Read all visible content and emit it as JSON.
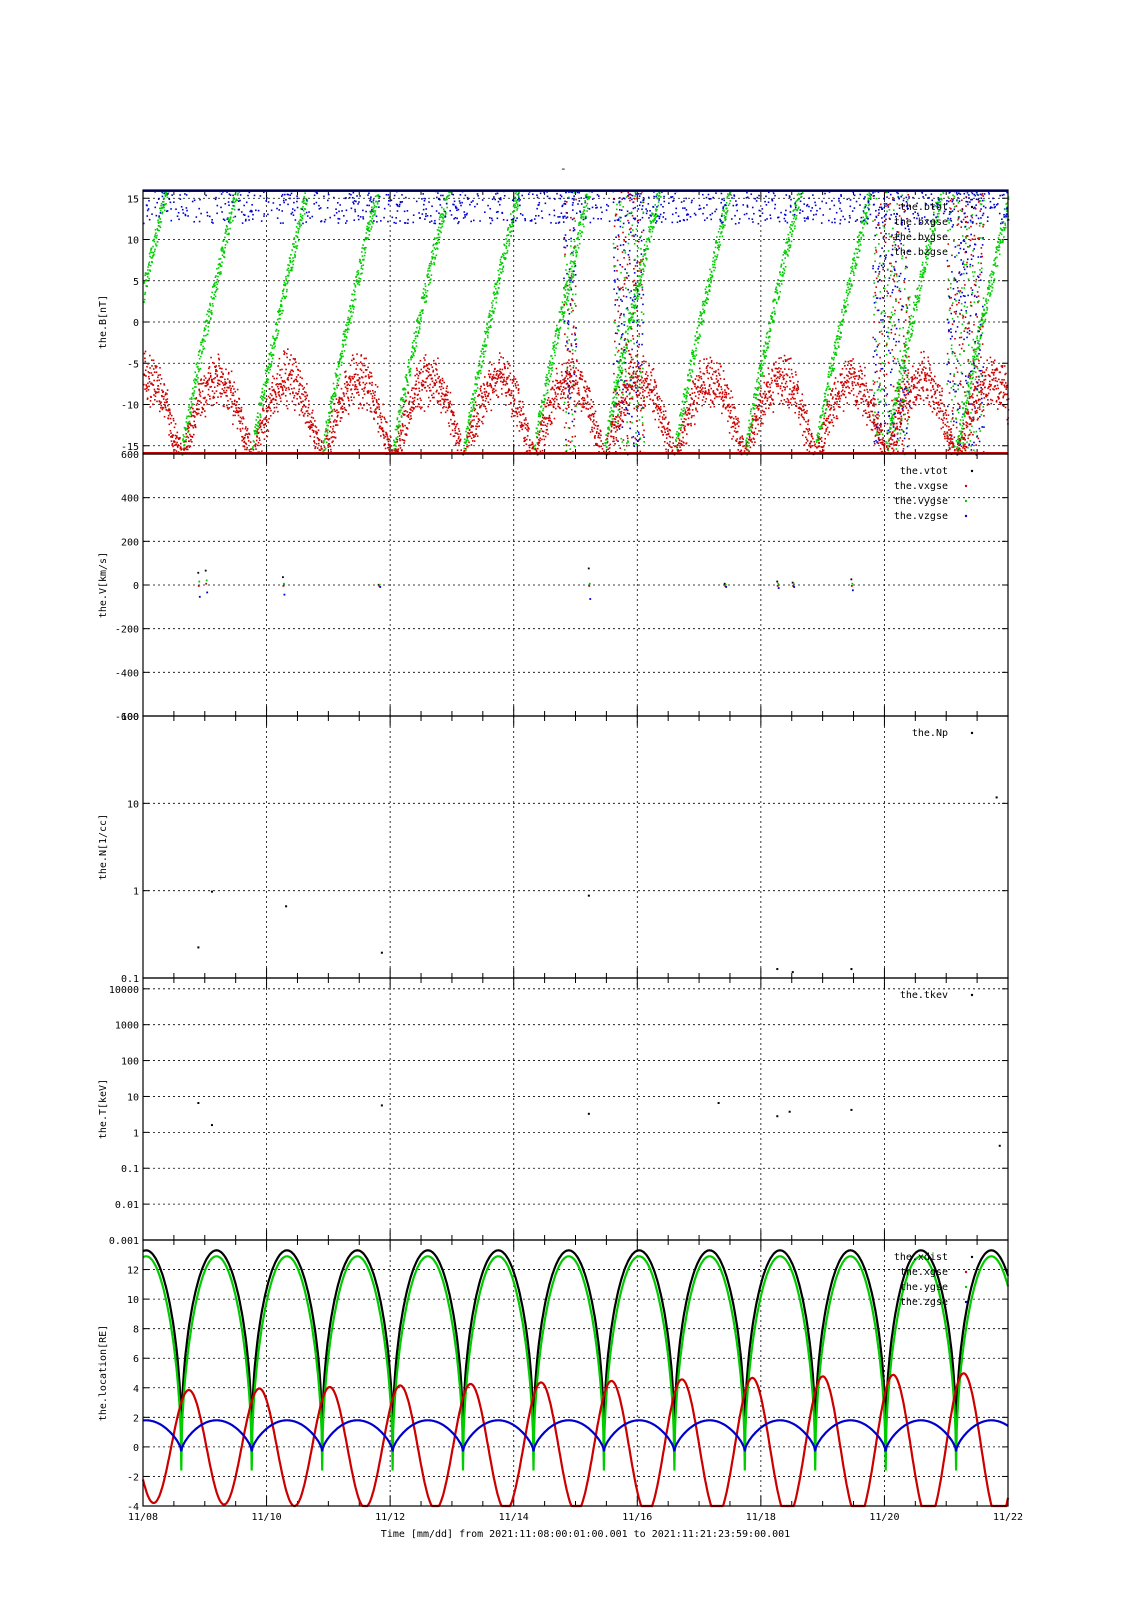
{
  "title": "-",
  "time_label": "Time [mm/dd]  from 2021:11:08:00:01:00.001  to  2021:11:21:23:59:00.001",
  "colors": {
    "black": "#000000",
    "red": "#cc0000",
    "green": "#00cc00",
    "blue": "#0000cc"
  },
  "chart_data": [
    {
      "type": "scatter",
      "name": "B",
      "ylabel": "the.B[nT]",
      "ylim": [
        -16,
        16
      ],
      "yticks": [
        -15,
        -10,
        -5,
        0,
        5,
        10,
        15
      ],
      "yscale": "linear",
      "legend": [
        "the.btot",
        "the.bxgse",
        "the.bygse",
        "the.bzgse"
      ],
      "legend_position": "top-right",
      "grid": true
    },
    {
      "type": "scatter",
      "name": "V",
      "ylabel": "the.V[km/s]",
      "ylim": [
        -600,
        600
      ],
      "yticks": [
        -600,
        -400,
        -200,
        0,
        200,
        400,
        600
      ],
      "yscale": "linear",
      "legend": [
        "the.vtot",
        "the.vxgse",
        "the.vygse",
        "the.vzgse"
      ],
      "legend_position": "top-right",
      "grid": true,
      "points": [
        {
          "day": 0.88,
          "values": [
            60,
            0,
            20,
            -50
          ]
        },
        {
          "day": 1.0,
          "values": [
            70,
            10,
            25,
            -30
          ]
        },
        {
          "day": 2.25,
          "values": [
            40,
            0,
            10,
            -40
          ]
        },
        {
          "day": 3.8,
          "values": [
            5,
            0,
            5,
            -5
          ]
        },
        {
          "day": 7.2,
          "values": [
            80,
            0,
            10,
            -60
          ]
        },
        {
          "day": 9.4,
          "values": [
            10,
            0,
            5,
            -5
          ]
        },
        {
          "day": 10.25,
          "values": [
            20,
            0,
            10,
            -10
          ]
        },
        {
          "day": 10.5,
          "values": [
            15,
            0,
            10,
            -5
          ]
        },
        {
          "day": 11.45,
          "values": [
            30,
            0,
            10,
            -20
          ]
        }
      ]
    },
    {
      "type": "scatter",
      "name": "N",
      "ylabel": "the.N[1/cc]",
      "ylim": [
        0.1,
        100
      ],
      "yticks": [
        0.1,
        1,
        10,
        100
      ],
      "ytick_labels": [
        "0.1",
        "1",
        "10",
        "100"
      ],
      "yscale": "log",
      "legend": [
        "the.Np"
      ],
      "legend_position": "top-right",
      "grid": true,
      "points": [
        [
          0.88,
          0.23
        ],
        [
          1.1,
          1.0
        ],
        [
          2.3,
          0.68
        ],
        [
          3.85,
          0.2
        ],
        [
          7.2,
          0.9
        ],
        [
          10.25,
          0.13
        ],
        [
          10.5,
          0.12
        ],
        [
          11.45,
          0.13
        ],
        [
          13.8,
          12
        ]
      ]
    },
    {
      "type": "scatter",
      "name": "T",
      "ylabel": "the.T[keV]",
      "ylim": [
        0.001,
        20000
      ],
      "yticks": [
        0.001,
        0.01,
        0.1,
        1,
        10,
        100,
        1000,
        10000
      ],
      "ytick_labels": [
        "0.001",
        "0.01",
        "0.1",
        "1",
        "10",
        "100",
        "1000",
        "10000"
      ],
      "yscale": "log",
      "legend": [
        "the.tkev"
      ],
      "legend_position": "top-right",
      "grid": true,
      "points": [
        [
          0.88,
          7
        ],
        [
          1.1,
          1.7
        ],
        [
          3.85,
          6
        ],
        [
          7.2,
          3.5
        ],
        [
          9.3,
          7
        ],
        [
          10.25,
          3
        ],
        [
          10.45,
          4
        ],
        [
          11.45,
          4.5
        ],
        [
          13.85,
          0.45
        ]
      ]
    },
    {
      "type": "line",
      "name": "location",
      "ylabel": "the.location[RE]",
      "ylim": [
        -4,
        14
      ],
      "yticks": [
        -4,
        -2,
        0,
        2,
        4,
        6,
        8,
        10,
        12
      ],
      "yscale": "linear",
      "legend": [
        "the.xdist",
        "the.xgse",
        "the.ygse",
        "the.zgse"
      ],
      "legend_position": "top-right",
      "grid": true,
      "orbit_period_days": 1.14
    }
  ],
  "x_axis": {
    "xlim_days": [
      0,
      14
    ],
    "tick_days": [
      0,
      2,
      4,
      6,
      8,
      10,
      12,
      14
    ],
    "tick_labels": [
      "11/08",
      "11/10",
      "11/12",
      "11/14",
      "11/16",
      "11/18",
      "11/20",
      "11/22"
    ]
  }
}
